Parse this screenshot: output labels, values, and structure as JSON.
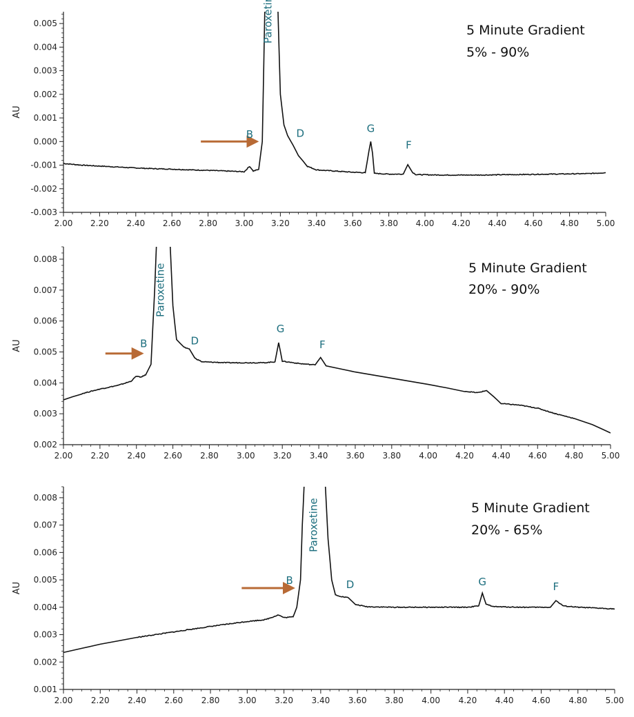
{
  "chart_data": [
    {
      "type": "line",
      "title": "",
      "xlabel": "",
      "ylabel": "AU",
      "xlim": [
        2.0,
        5.0
      ],
      "ylim": [
        -0.003,
        0.0055
      ],
      "xticks": [
        "2.00",
        "2.20",
        "2.40",
        "2.60",
        "2.80",
        "3.00",
        "3.20",
        "3.40",
        "3.60",
        "3.80",
        "4.00",
        "4.20",
        "4.40",
        "4.60",
        "4.80",
        "5.00"
      ],
      "yticks": [
        "-0.003",
        "-0.002",
        "-0.001",
        "0.000",
        "0.001",
        "0.002",
        "0.003",
        "0.004",
        "0.005"
      ],
      "annotation": [
        "5 Minute Gradient",
        "5% - 90%"
      ],
      "arrow": {
        "from": 2.76,
        "to": 3.07,
        "y": 0.0
      },
      "peaks": [
        {
          "label": "B",
          "x": 3.03,
          "y": 0.00016
        },
        {
          "label": "D",
          "x": 3.31,
          "y": 0.0002
        },
        {
          "label": "G",
          "x": 3.7,
          "y": 0.0004
        },
        {
          "label": "F",
          "x": 3.91,
          "y": -0.0003
        },
        {
          "label": "Paroxetine",
          "x": 3.15,
          "y": 0.0053
        }
      ],
      "series": [
        {
          "values": [
            [
              2.0,
              -0.00093
            ],
            [
              2.1,
              -0.001
            ],
            [
              2.2,
              -0.00104
            ],
            [
              2.3,
              -0.00108
            ],
            [
              2.4,
              -0.00112
            ],
            [
              2.5,
              -0.00115
            ],
            [
              2.6,
              -0.00117
            ],
            [
              2.7,
              -0.0012
            ],
            [
              2.8,
              -0.00122
            ],
            [
              2.9,
              -0.00125
            ],
            [
              3.0,
              -0.00128
            ],
            [
              3.03,
              -0.00105
            ],
            [
              3.05,
              -0.00125
            ],
            [
              3.08,
              -0.00118
            ],
            [
              3.1,
              0.0
            ],
            [
              3.115,
              0.006
            ],
            [
              3.185,
              0.006
            ],
            [
              3.2,
              0.002
            ],
            [
              3.22,
              0.0007
            ],
            [
              3.24,
              0.00025
            ],
            [
              3.27,
              -0.00015
            ],
            [
              3.3,
              -0.0006
            ],
            [
              3.35,
              -0.00105
            ],
            [
              3.4,
              -0.0012
            ],
            [
              3.5,
              -0.00125
            ],
            [
              3.6,
              -0.0013
            ],
            [
              3.67,
              -0.00132
            ],
            [
              3.69,
              -0.0004
            ],
            [
              3.7,
              0.0
            ],
            [
              3.71,
              -0.0005
            ],
            [
              3.72,
              -0.00135
            ],
            [
              3.8,
              -0.00138
            ],
            [
              3.88,
              -0.00138
            ],
            [
              3.905,
              -0.00098
            ],
            [
              3.93,
              -0.0013
            ],
            [
              3.95,
              -0.0014
            ],
            [
              4.1,
              -0.00142
            ],
            [
              4.3,
              -0.00142
            ],
            [
              4.5,
              -0.0014
            ],
            [
              4.7,
              -0.00138
            ],
            [
              4.9,
              -0.00136
            ],
            [
              5.0,
              -0.00132
            ]
          ]
        }
      ]
    },
    {
      "type": "line",
      "title": "",
      "xlabel": "",
      "ylabel": "AU",
      "xlim": [
        2.0,
        5.0
      ],
      "ylim": [
        0.002,
        0.0084
      ],
      "xticks": [
        "2.00",
        "2.20",
        "2.40",
        "2.60",
        "2.80",
        "3.00",
        "3.20",
        "3.40",
        "3.60",
        "3.80",
        "4.00",
        "4.20",
        "4.40",
        "4.60",
        "4.80",
        "5.00"
      ],
      "yticks": [
        "0.002",
        "0.003",
        "0.004",
        "0.005",
        "0.006",
        "0.007",
        "0.008"
      ],
      "annotation": [
        "5 Minute Gradient",
        "20% - 90%"
      ],
      "arrow": {
        "from": 2.23,
        "to": 2.43,
        "y": 0.00495
      },
      "peaks": [
        {
          "label": "B",
          "x": 2.44,
          "y": 0.00515
        },
        {
          "label": "D",
          "x": 2.72,
          "y": 0.00525
        },
        {
          "label": "G",
          "x": 3.19,
          "y": 0.00563
        },
        {
          "label": "F",
          "x": 3.42,
          "y": 0.00512
        },
        {
          "label": "Paroxetine",
          "x": 2.55,
          "y": 0.007
        }
      ],
      "series": [
        {
          "values": [
            [
              2.0,
              0.00345
            ],
            [
              2.1,
              0.00365
            ],
            [
              2.2,
              0.0038
            ],
            [
              2.3,
              0.00392
            ],
            [
              2.37,
              0.00405
            ],
            [
              2.4,
              0.00422
            ],
            [
              2.42,
              0.00418
            ],
            [
              2.45,
              0.00425
            ],
            [
              2.48,
              0.0046
            ],
            [
              2.5,
              0.007
            ],
            [
              2.51,
              0.0085
            ],
            [
              2.585,
              0.0085
            ],
            [
              2.6,
              0.0065
            ],
            [
              2.62,
              0.0054
            ],
            [
              2.66,
              0.00515
            ],
            [
              2.69,
              0.0051
            ],
            [
              2.72,
              0.0048
            ],
            [
              2.76,
              0.00468
            ],
            [
              2.9,
              0.00465
            ],
            [
              3.0,
              0.00465
            ],
            [
              3.1,
              0.00465
            ],
            [
              3.16,
              0.00468
            ],
            [
              3.18,
              0.0053
            ],
            [
              3.2,
              0.0047
            ],
            [
              3.3,
              0.00462
            ],
            [
              3.38,
              0.00458
            ],
            [
              3.41,
              0.00482
            ],
            [
              3.44,
              0.00455
            ],
            [
              3.6,
              0.00435
            ],
            [
              3.8,
              0.00415
            ],
            [
              4.0,
              0.00395
            ],
            [
              4.2,
              0.00373
            ],
            [
              4.27,
              0.00368
            ],
            [
              4.32,
              0.00375
            ],
            [
              4.36,
              0.00355
            ],
            [
              4.4,
              0.00333
            ],
            [
              4.5,
              0.00328
            ],
            [
              4.6,
              0.00318
            ],
            [
              4.7,
              0.003
            ],
            [
              4.8,
              0.00285
            ],
            [
              4.9,
              0.00265
            ],
            [
              5.0,
              0.00238
            ]
          ]
        }
      ]
    },
    {
      "type": "line",
      "title": "",
      "xlabel": "",
      "ylabel": "AU",
      "xlim": [
        2.0,
        5.0
      ],
      "ylim": [
        0.001,
        0.0084
      ],
      "xticks": [
        "2.00",
        "2.20",
        "2.40",
        "2.60",
        "2.80",
        "3.00",
        "3.20",
        "3.40",
        "3.60",
        "3.80",
        "4.00",
        "4.20",
        "4.40",
        "4.60",
        "4.80",
        "5.00"
      ],
      "yticks": [
        "0.001",
        "0.002",
        "0.003",
        "0.004",
        "0.005",
        "0.006",
        "0.007",
        "0.008"
      ],
      "annotation": [
        "5 Minute Gradient",
        "20% - 65%"
      ],
      "arrow": {
        "from": 2.97,
        "to": 3.25,
        "y": 0.0047
      },
      "peaks": [
        {
          "label": "B",
          "x": 3.23,
          "y": 0.00485
        },
        {
          "label": "D",
          "x": 3.56,
          "y": 0.0047
        },
        {
          "label": "G",
          "x": 4.28,
          "y": 0.0048
        },
        {
          "label": "F",
          "x": 4.68,
          "y": 0.00463
        },
        {
          "label": "Paroxetine",
          "x": 3.38,
          "y": 0.007
        }
      ],
      "series": [
        {
          "values": [
            [
              2.0,
              0.00235
            ],
            [
              2.2,
              0.00265
            ],
            [
              2.4,
              0.0029
            ],
            [
              2.6,
              0.0031
            ],
            [
              2.8,
              0.0033
            ],
            [
              3.0,
              0.00348
            ],
            [
              3.1,
              0.00355
            ],
            [
              3.17,
              0.00372
            ],
            [
              3.2,
              0.00362
            ],
            [
              3.25,
              0.00365
            ],
            [
              3.27,
              0.004
            ],
            [
              3.29,
              0.005
            ],
            [
              3.3,
              0.007
            ],
            [
              3.31,
              0.0085
            ],
            [
              3.425,
              0.0085
            ],
            [
              3.44,
              0.0065
            ],
            [
              3.46,
              0.005
            ],
            [
              3.48,
              0.00445
            ],
            [
              3.52,
              0.00438
            ],
            [
              3.55,
              0.00435
            ],
            [
              3.59,
              0.0041
            ],
            [
              3.65,
              0.00402
            ],
            [
              3.8,
              0.004
            ],
            [
              4.0,
              0.004
            ],
            [
              4.2,
              0.004
            ],
            [
              4.26,
              0.00405
            ],
            [
              4.28,
              0.00452
            ],
            [
              4.3,
              0.0041
            ],
            [
              4.35,
              0.00402
            ],
            [
              4.5,
              0.004
            ],
            [
              4.65,
              0.004
            ],
            [
              4.68,
              0.00424
            ],
            [
              4.72,
              0.00405
            ],
            [
              4.8,
              0.004
            ],
            [
              5.0,
              0.00394
            ]
          ]
        }
      ]
    }
  ]
}
